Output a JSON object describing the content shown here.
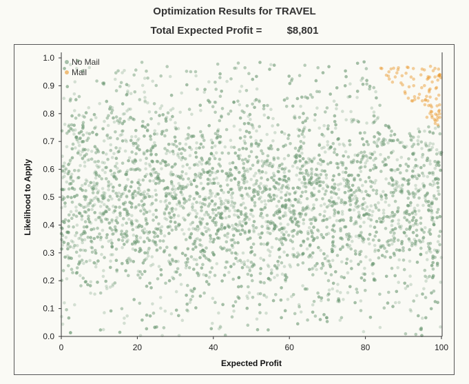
{
  "header": {
    "title": "Optimization Results for TRAVEL",
    "profit_label": "Total Expected Profit =",
    "profit_value": "$8,801"
  },
  "chart_data": {
    "type": "scatter",
    "title": "Optimization Results for TRAVEL",
    "xlabel": "Expected Profit",
    "ylabel": "Likelihood to Apply",
    "xlim": [
      0,
      100
    ],
    "ylim": [
      0,
      1
    ],
    "x_ticks": [
      0,
      20,
      40,
      60,
      80,
      100
    ],
    "y_ticks": [
      0.0,
      0.1,
      0.2,
      0.3,
      0.4,
      0.5,
      0.6,
      0.7,
      0.8,
      0.9,
      1.0
    ],
    "x_tick_labels": [
      "0",
      "20",
      "40",
      "60",
      "80",
      "100"
    ],
    "y_tick_labels": [
      "0.0",
      "0.1",
      "0.2",
      "0.3",
      "0.4",
      "0.5",
      "0.6",
      "0.7",
      "0.8",
      "0.9",
      "1.0"
    ],
    "grid": false,
    "legend": {
      "position": "top-left",
      "entries": [
        "No Mail",
        "Mail"
      ]
    },
    "series": [
      {
        "name": "No Mail",
        "color": "#6f9a78",
        "approx_point_count": 6000,
        "x_range": [
          0,
          100
        ],
        "y_range": [
          0.0,
          0.99
        ]
      },
      {
        "name": "Mail",
        "color": "#e8962a",
        "approx_point_count": 180,
        "x_range": [
          83,
          100
        ],
        "y_range": [
          0.73,
          0.97
        ]
      }
    ]
  }
}
